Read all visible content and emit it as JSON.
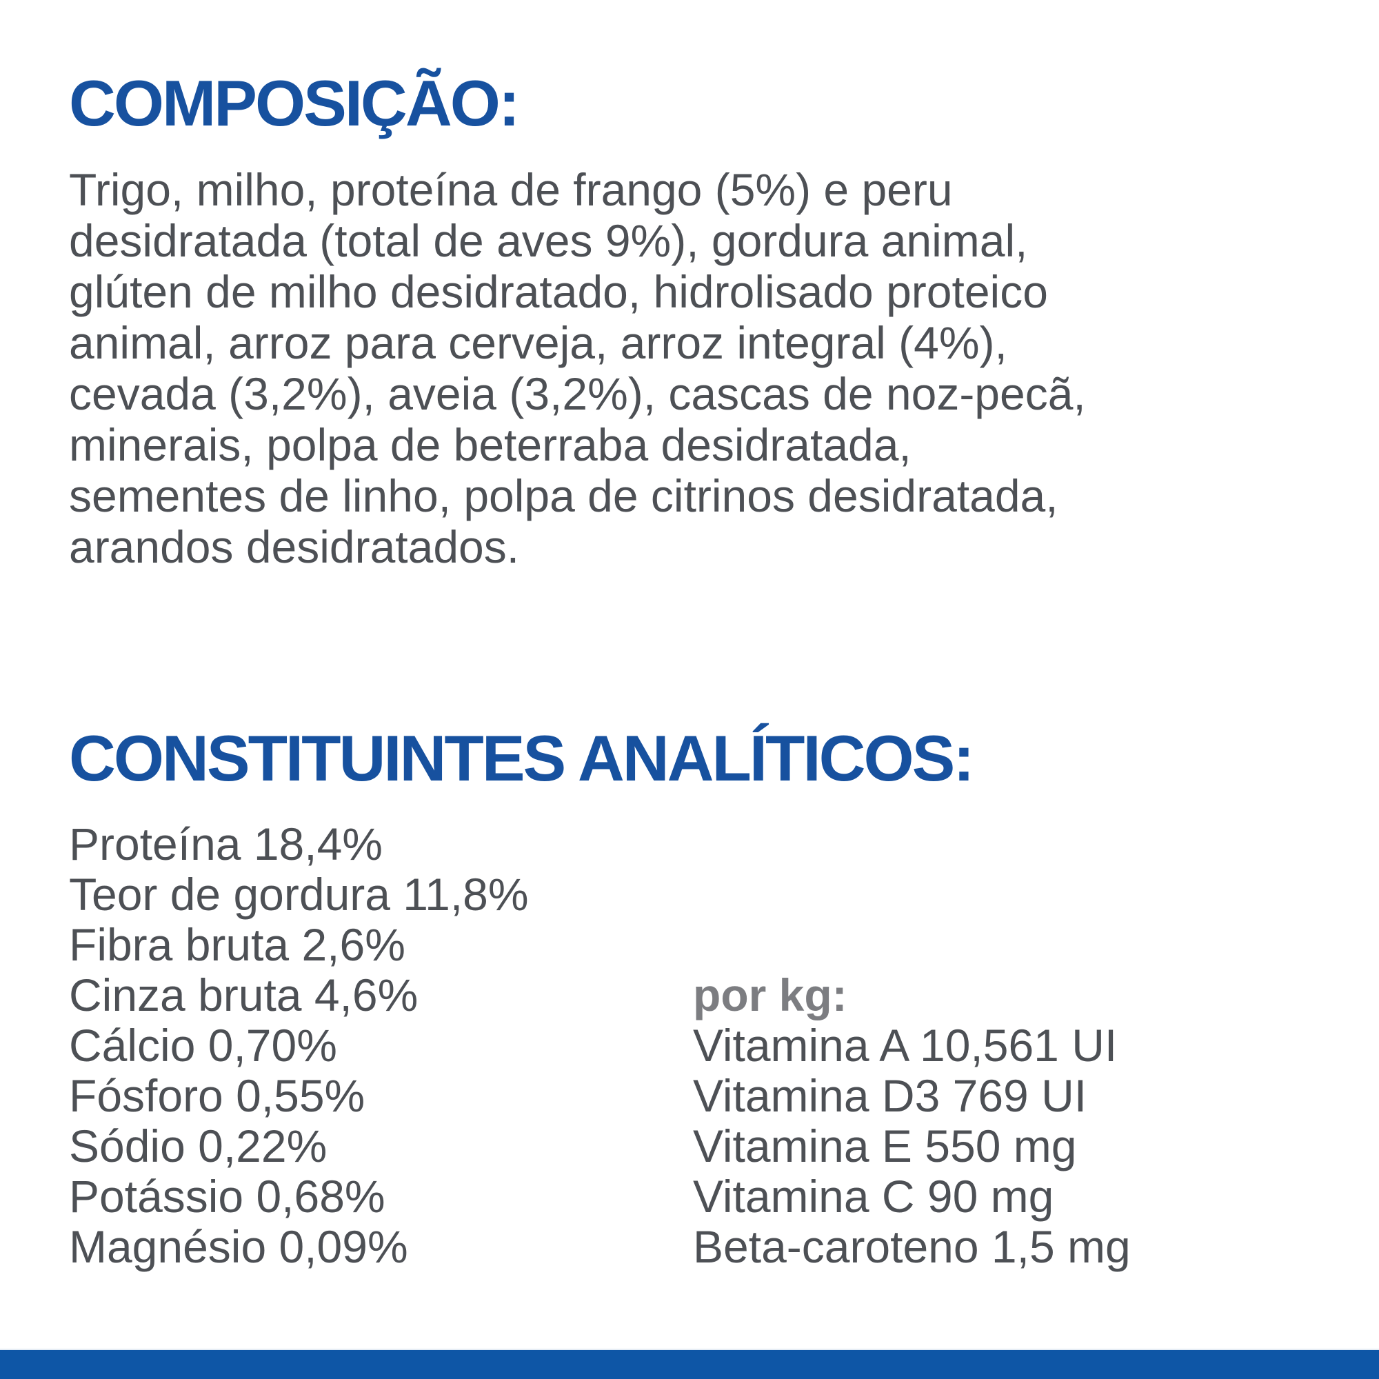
{
  "colors": {
    "heading_blue": "#17519f",
    "body_gray": "#4d5055",
    "per_kg_gray": "#7c7d81",
    "bottom_bar_blue": "#0e56a6",
    "background": "#ffffff"
  },
  "composition": {
    "heading": "COMPOSIÇÃO:",
    "lines": [
      "Trigo, milho, proteína de frango (5%) e peru",
      "desidratada (total de aves 9%), gordura animal,",
      "glúten de milho desidratado, hidrolisado proteico",
      "animal, arroz para cerveja, arroz integral (4%),",
      "cevada (3,2%), aveia (3,2%), cascas de noz-pecã,",
      "minerais, polpa de beterraba desidratada,",
      "sementes de linho, polpa de citrinos desidratada,",
      "arandos desidratados."
    ]
  },
  "analytical": {
    "heading": "CONSTITUINTES ANALÍTICOS:",
    "left_items": [
      "Proteína 18,4%",
      "Teor de gordura 11,8%",
      "Fibra bruta 2,6%",
      "Cinza bruta 4,6%",
      "Cálcio 0,70%",
      "Fósforo 0,55%",
      "Sódio 0,22%",
      "Potássio 0,68%",
      "Magnésio 0,09%"
    ],
    "per_kg_label": "por kg:",
    "per_kg_items": [
      "Vitamina A 10,561 UI",
      "Vitamina D3 769 UI",
      "Vitamina E 550 mg",
      "Vitamina C 90 mg",
      "Beta-caroteno 1,5 mg"
    ]
  }
}
